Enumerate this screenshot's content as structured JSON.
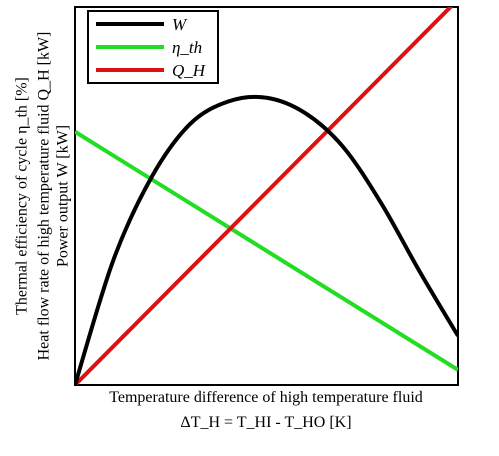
{
  "chart_data": {
    "type": "line",
    "title": "",
    "grid": false,
    "legend_position": "top-left",
    "xlabel": {
      "line1": "Temperature difference of high temperature fluid",
      "line2": "ΔT_H = T_HI - T_HO [K]"
    },
    "ylabel": {
      "line1": "Thermal efficiency of cycle η_th [%]",
      "line2": "Heat flow rate of high temperature fluid Q_H [kW]",
      "line3": "Power output W [kW]"
    },
    "x_range": [
      0,
      1
    ],
    "y_range": [
      0,
      1
    ],
    "series": [
      {
        "name": "W",
        "color": "#000000",
        "points": [
          [
            0,
            0
          ],
          [
            0.1,
            0.33
          ],
          [
            0.2,
            0.55
          ],
          [
            0.3,
            0.69
          ],
          [
            0.4,
            0.75
          ],
          [
            0.5,
            0.76
          ],
          [
            0.6,
            0.72
          ],
          [
            0.7,
            0.63
          ],
          [
            0.8,
            0.48
          ],
          [
            0.9,
            0.3
          ],
          [
            1.0,
            0.13
          ]
        ]
      },
      {
        "name": "η_th",
        "color": "#22dd22",
        "points": [
          [
            0,
            0.67
          ],
          [
            1.0,
            0.04
          ]
        ]
      },
      {
        "name": "Q_H",
        "color": "#dd1111",
        "points": [
          [
            0,
            0
          ],
          [
            1.0,
            1.02
          ]
        ]
      }
    ]
  }
}
